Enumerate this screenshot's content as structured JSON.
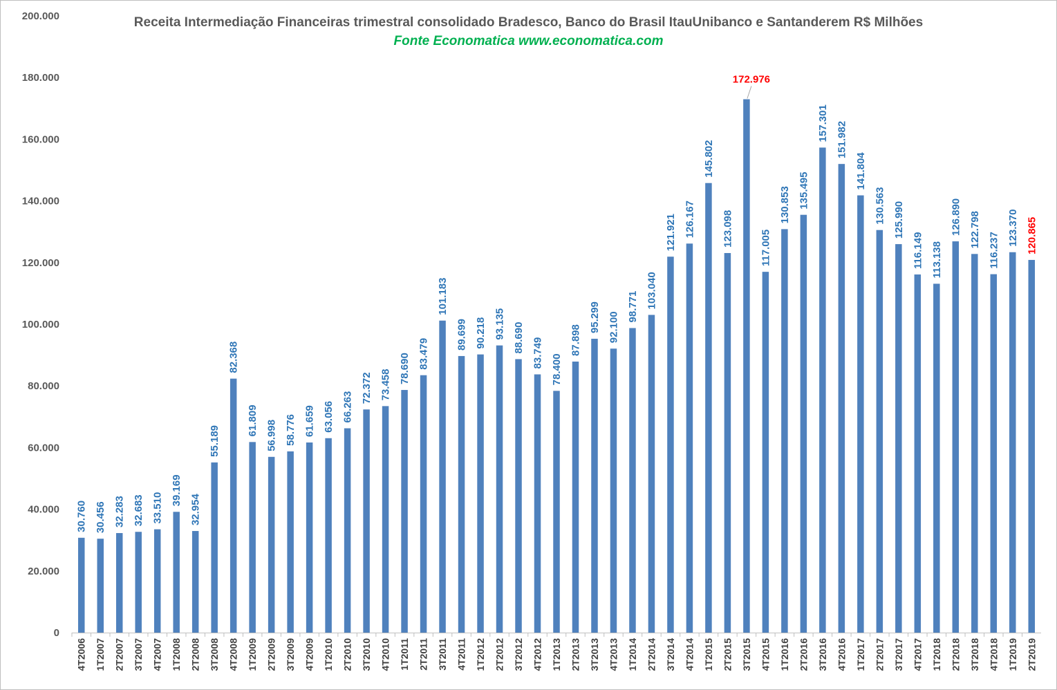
{
  "title": "Receita Intermediação Financeiras trimestral consolidado Bradesco, Banco do Brasil ItauUnibanco e Santanderem R$ Milhões",
  "subtitle": "Fonte Economatica www.economatica.com",
  "colors": {
    "bar": "#4f81bd",
    "label": "#2e75b6",
    "highlight": "#ff0000",
    "title": "#595959",
    "subtitle": "#00b050"
  },
  "chart_data": {
    "type": "bar",
    "title": "Receita Intermediação Financeiras trimestral consolidado Bradesco, Banco do Brasil ItauUnibanco e Santanderem R$ Milhões",
    "subtitle": "Fonte Economatica www.economatica.com",
    "xlabel": "",
    "ylabel": "",
    "ylim": [
      0,
      200000
    ],
    "yticks": [
      0,
      20000,
      40000,
      60000,
      80000,
      100000,
      120000,
      140000,
      160000,
      180000,
      200000
    ],
    "ytick_labels": [
      "0",
      "20.000",
      "40.000",
      "60.000",
      "80.000",
      "100.000",
      "120.000",
      "140.000",
      "160.000",
      "180.000",
      "200.000"
    ],
    "grid": false,
    "legend": "none",
    "categories": [
      "4T2006",
      "1T2007",
      "2T2007",
      "3T2007",
      "4T2007",
      "1T2008",
      "2T2008",
      "3T2008",
      "4T2008",
      "1T2009",
      "2T2009",
      "3T2009",
      "4T2009",
      "1T2010",
      "2T2010",
      "3T2010",
      "4T2010",
      "1T2011",
      "2T2011",
      "3T2011",
      "4T2011",
      "1T2012",
      "2T2012",
      "3T2012",
      "4T2012",
      "1T2013",
      "2T2013",
      "3T2013",
      "4T2013",
      "1T2014",
      "2T2014",
      "3T2014",
      "4T2014",
      "1T2015",
      "2T2015",
      "3T2015",
      "4T2015",
      "1T2016",
      "2T2016",
      "3T2016",
      "4T2016",
      "1T2017",
      "2T2017",
      "3T2017",
      "4T2017",
      "1T2018",
      "2T2018",
      "3T2018",
      "4T2018",
      "1T2019",
      "2T2019"
    ],
    "values": [
      30760,
      30456,
      32283,
      32683,
      33510,
      39169,
      32954,
      55189,
      82368,
      61809,
      56998,
      58776,
      61659,
      63056,
      66263,
      72372,
      73458,
      78690,
      83479,
      101183,
      89699,
      90218,
      93135,
      88690,
      83749,
      78400,
      87898,
      95299,
      92100,
      98771,
      103040,
      121921,
      126167,
      145802,
      123098,
      172976,
      117005,
      130853,
      135495,
      157301,
      151982,
      141804,
      130563,
      125990,
      116149,
      113138,
      126890,
      122798,
      116237,
      123370,
      120865
    ],
    "labels": [
      "30.760",
      "30.456",
      "32.283",
      "32.683",
      "33.510",
      "39.169",
      "32.954",
      "55.189",
      "82.368",
      "61.809",
      "56.998",
      "58.776",
      "61.659",
      "63.056",
      "66.263",
      "72.372",
      "73.458",
      "78.690",
      "83.479",
      "101.183",
      "89.699",
      "90.218",
      "93.135",
      "88.690",
      "83.749",
      "78.400",
      "87.898",
      "95.299",
      "92.100",
      "98.771",
      "103.040",
      "121.921",
      "126.167",
      "145.802",
      "123.098",
      "172.976",
      "117.005",
      "130.853",
      "135.495",
      "157.301",
      "151.982",
      "141.804",
      "130.563",
      "125.990",
      "116.149",
      "113.138",
      "126.890",
      "122.798",
      "116.237",
      "123.370",
      "120.865"
    ],
    "highlighted": [
      "3T2015",
      "2T2019"
    ]
  }
}
